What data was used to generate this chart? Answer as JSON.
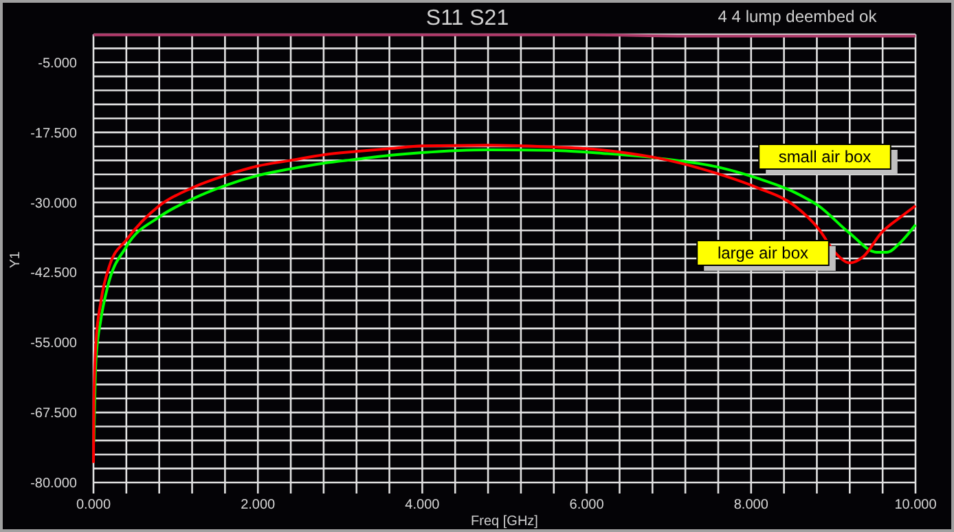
{
  "chart_data": {
    "type": "line",
    "title": "S11  S21",
    "subtitle": "4 4 lump deembed ok",
    "xlabel": "Freq [GHz]",
    "ylabel": "Y1",
    "xlim": [
      0,
      10
    ],
    "ylim": [
      -80,
      0
    ],
    "xticks": [
      {
        "value": 0,
        "label": "0.000"
      },
      {
        "value": 0.4,
        "label": null
      },
      {
        "value": 0.8,
        "label": null
      },
      {
        "value": 1.2,
        "label": null
      },
      {
        "value": 1.6,
        "label": null
      },
      {
        "value": 2,
        "label": "2.000"
      },
      {
        "value": 2.4,
        "label": null
      },
      {
        "value": 2.8,
        "label": null
      },
      {
        "value": 3.2,
        "label": null
      },
      {
        "value": 3.6,
        "label": null
      },
      {
        "value": 4,
        "label": "4.000"
      },
      {
        "value": 4.4,
        "label": null
      },
      {
        "value": 4.8,
        "label": null
      },
      {
        "value": 5.2,
        "label": null
      },
      {
        "value": 5.6,
        "label": null
      },
      {
        "value": 6,
        "label": "6.000"
      },
      {
        "value": 6.4,
        "label": null
      },
      {
        "value": 6.8,
        "label": null
      },
      {
        "value": 7.2,
        "label": null
      },
      {
        "value": 7.6,
        "label": null
      },
      {
        "value": 8,
        "label": "8.000"
      },
      {
        "value": 8.4,
        "label": null
      },
      {
        "value": 8.8,
        "label": null
      },
      {
        "value": 9.2,
        "label": null
      },
      {
        "value": 9.6,
        "label": null
      },
      {
        "value": 10,
        "label": "10.000"
      }
    ],
    "yticks": [
      {
        "value": -80,
        "label": "-80.000"
      },
      {
        "value": -77.5,
        "label": null
      },
      {
        "value": -75,
        "label": null
      },
      {
        "value": -72.5,
        "label": null
      },
      {
        "value": -70,
        "label": null
      },
      {
        "value": -67.5,
        "label": "-67.500"
      },
      {
        "value": -65,
        "label": null
      },
      {
        "value": -62.5,
        "label": null
      },
      {
        "value": -60,
        "label": null
      },
      {
        "value": -57.5,
        "label": null
      },
      {
        "value": -55,
        "label": "-55.000"
      },
      {
        "value": -52.5,
        "label": null
      },
      {
        "value": -50,
        "label": null
      },
      {
        "value": -47.5,
        "label": null
      },
      {
        "value": -45,
        "label": null
      },
      {
        "value": -42.5,
        "label": "-42.500"
      },
      {
        "value": -40,
        "label": null
      },
      {
        "value": -37.5,
        "label": null
      },
      {
        "value": -35,
        "label": null
      },
      {
        "value": -32.5,
        "label": null
      },
      {
        "value": -30,
        "label": "-30.000"
      },
      {
        "value": -27.5,
        "label": null
      },
      {
        "value": -25,
        "label": null
      },
      {
        "value": -22.5,
        "label": null
      },
      {
        "value": -20,
        "label": null
      },
      {
        "value": -17.5,
        "label": "-17.500"
      },
      {
        "value": -15,
        "label": null
      },
      {
        "value": -12.5,
        "label": null
      },
      {
        "value": -10,
        "label": null
      },
      {
        "value": -7.5,
        "label": null
      },
      {
        "value": -5,
        "label": "-5.000"
      },
      {
        "value": -2.5,
        "label": null
      },
      {
        "value": 0,
        "label": null
      }
    ],
    "grid": true,
    "marker": "none",
    "line_style": "solid",
    "series": [
      {
        "color": "#b03a6a",
        "x": [
          0,
          2,
          4,
          6,
          7.3,
          8,
          10
        ],
        "values": [
          -0.1,
          -0.1,
          -0.1,
          -0.1,
          -0.3,
          -0.3,
          -0.3
        ]
      },
      {
        "name": "small air box",
        "color": "#00ff00",
        "x": [
          0.005,
          0.03,
          0.09,
          0.17,
          0.4,
          0.8,
          1.2,
          1.6,
          2.0,
          2.4,
          2.8,
          3.2,
          3.6,
          4.0,
          4.8,
          5.58,
          6.25,
          6.87,
          7.6,
          8.08,
          8.53,
          8.82,
          9.2,
          9.53,
          9.65,
          9.82,
          10.0
        ],
        "values": [
          -72.8,
          -58.2,
          -50.9,
          -45.2,
          -37.9,
          -32.6,
          -29.4,
          -27.0,
          -25.2,
          -24.0,
          -23.0,
          -22.3,
          -21.6,
          -21.1,
          -20.6,
          -20.7,
          -21.3,
          -22.1,
          -23.7,
          -25.7,
          -28.2,
          -30.6,
          -35.5,
          -38.9,
          -38.9,
          -37.1,
          -34.0
        ]
      },
      {
        "name": "large air box",
        "color": "#ff0000",
        "x": [
          0,
          0.005,
          0.03,
          0.09,
          0.2,
          0.4,
          0.8,
          1.2,
          1.6,
          2.0,
          2.4,
          2.8,
          3.2,
          3.6,
          4.0,
          4.8,
          5.4,
          6.0,
          6.4,
          6.87,
          7.6,
          8.08,
          8.53,
          8.82,
          9.03,
          9.2,
          9.37,
          9.58,
          9.82,
          10.0
        ],
        "values": [
          -76.5,
          -65.5,
          -55,
          -47.7,
          -41.1,
          -36.7,
          -30.6,
          -27.4,
          -25.2,
          -23.5,
          -22.5,
          -21.5,
          -20.9,
          -20.4,
          -19.9,
          -19.8,
          -20.0,
          -20.4,
          -21.0,
          -22.1,
          -24.9,
          -27.4,
          -30.6,
          -34.7,
          -39.1,
          -40.8,
          -39.6,
          -35.5,
          -32.6,
          -30.6
        ]
      }
    ]
  }
}
